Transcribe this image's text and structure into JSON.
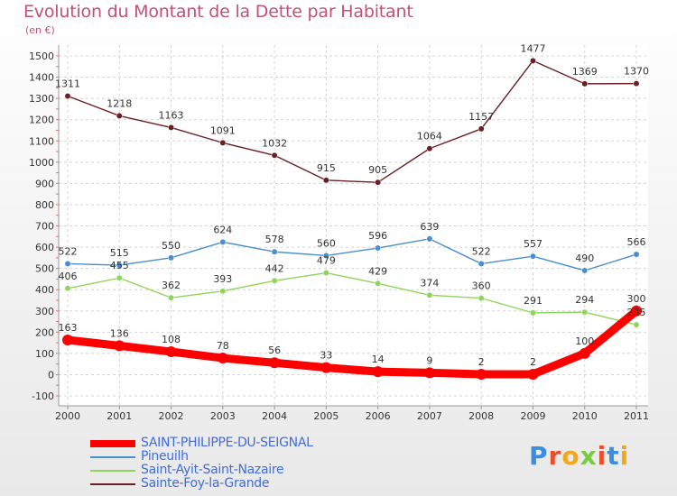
{
  "title": "Evolution du Montant de la Dette par Habitant",
  "unit": "(en €)",
  "logo": "Proxiti",
  "chart_data": {
    "type": "line",
    "title": "Evolution du Montant de la Dette par Habitant",
    "ylabel": "(en €)",
    "ylim": [
      -100,
      1500
    ],
    "yticks": [
      -100,
      0,
      100,
      200,
      300,
      400,
      500,
      600,
      700,
      800,
      900,
      1000,
      1100,
      1200,
      1300,
      1400,
      1500
    ],
    "grid": true,
    "legend_position": "bottom-left",
    "x": [
      "2000",
      "2001",
      "2002",
      "2003",
      "2004",
      "2005",
      "2006",
      "2007",
      "2008",
      "2009",
      "2010",
      "2011"
    ],
    "series": [
      {
        "name": "SAINT-PHILIPPE-DU-SEIGNAL",
        "color": "#ff0000",
        "values": [
          163,
          136,
          108,
          78,
          56,
          33,
          14,
          9,
          2,
          2,
          100,
          300
        ]
      },
      {
        "name": "Pineuilh",
        "color": "#4a8ed0",
        "values": [
          522,
          515,
          550,
          624,
          578,
          560,
          596,
          639,
          522,
          557,
          490,
          566
        ]
      },
      {
        "name": "Saint-Ayit-Saint-Nazaire",
        "color": "#8fd55a",
        "values": [
          406,
          455,
          362,
          393,
          442,
          479,
          429,
          374,
          360,
          291,
          294,
          235
        ]
      },
      {
        "name": "Sainte-Foy-la-Grande",
        "color": "#6b1f24",
        "values": [
          1311,
          1218,
          1163,
          1091,
          1032,
          915,
          905,
          1064,
          1157,
          1477,
          1369,
          1370
        ]
      }
    ]
  }
}
